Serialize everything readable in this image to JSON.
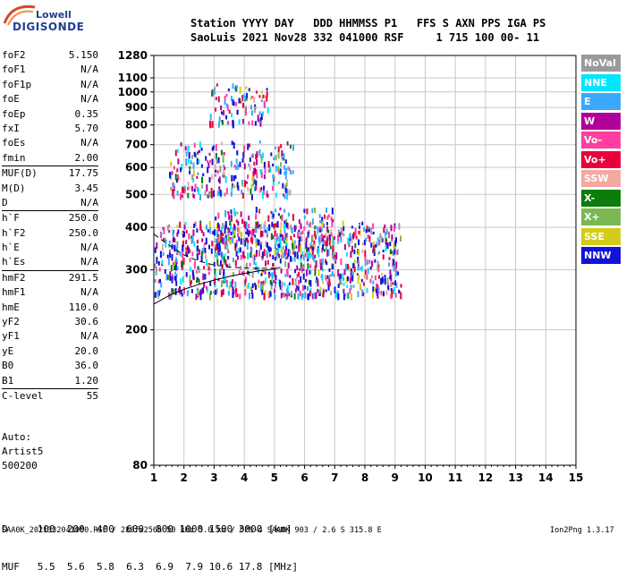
{
  "logo": {
    "line1": "Lowell",
    "line2": "DIGISONDE"
  },
  "header": {
    "line1": "Station YYYY DAY   DDD HHMMSS P1   FFS S AXN PPS IGA PS",
    "line2": "SaoLuis 2021 Nov28 332 041000 RSF     1 715 100 00- 11"
  },
  "params": [
    {
      "name": "foF2",
      "value": "5.150"
    },
    {
      "name": "foF1",
      "value": "N/A"
    },
    {
      "name": "foF1p",
      "value": "N/A"
    },
    {
      "name": "foE",
      "value": "N/A"
    },
    {
      "name": "foEp",
      "value": "0.35"
    },
    {
      "name": "fxI",
      "value": "5.70"
    },
    {
      "name": "foEs",
      "value": "N/A"
    },
    {
      "name": "fmin",
      "value": "2.00"
    },
    {
      "name": "MUF(D)",
      "value": "17.75"
    },
    {
      "name": "M(D)",
      "value": "3.45"
    },
    {
      "name": "D",
      "value": "N/A"
    },
    {
      "name": "h`F",
      "value": "250.0"
    },
    {
      "name": "h`F2",
      "value": "250.0"
    },
    {
      "name": "h`E",
      "value": "N/A"
    },
    {
      "name": "h`Es",
      "value": "N/A"
    },
    {
      "name": "hmF2",
      "value": "291.5"
    },
    {
      "name": "hmF1",
      "value": "N/A"
    },
    {
      "name": "hmE",
      "value": "110.0"
    },
    {
      "name": "yF2",
      "value": "30.6"
    },
    {
      "name": "yF1",
      "value": "N/A"
    },
    {
      "name": "yE",
      "value": "20.0"
    },
    {
      "name": "B0",
      "value": "36.0"
    },
    {
      "name": "B1",
      "value": "1.20"
    },
    {
      "name": "C-level",
      "value": "55"
    }
  ],
  "auto": {
    "label": "Auto:",
    "artist": "Artist5",
    "version": "500200"
  },
  "legend": [
    {
      "label": "NoVal",
      "color": "#9a9a9a"
    },
    {
      "label": "NNE",
      "color": "#00e6ff"
    },
    {
      "label": "E",
      "color": "#3aa8ff"
    },
    {
      "label": "W",
      "color": "#b0009a"
    },
    {
      "label": "Vo-",
      "color": "#ff3fa0"
    },
    {
      "label": "Vo+",
      "color": "#e8003a"
    },
    {
      "label": "SSW",
      "color": "#f4a8a0"
    },
    {
      "label": "X-",
      "color": "#0a7d0a"
    },
    {
      "label": "X+",
      "color": "#7ab854"
    },
    {
      "label": "SSE",
      "color": "#d2cc1a"
    },
    {
      "label": "NNW",
      "color": "#1212d8"
    }
  ],
  "footer": {
    "d_row": "D     100  200  400  600  800 1000 1500 3000 [km]",
    "muf_row": "MUF   5.5  5.6  5.8  6.3  6.9  7.9 10.6 17.8 [MHz]",
    "info": "SAA0K_2021332041000.RSF / 280fx256h 50 kHz 5.0 km / DPS-4 SAA0K 903 / 2.6 S 315.8 E",
    "version": "Ion2Png 1.3.17"
  },
  "chart_data": {
    "type": "scatter",
    "title": "",
    "xlabel": "",
    "ylabel": "",
    "xlim": [
      1,
      15
    ],
    "ylim": [
      80,
      1280
    ],
    "y_scale": "log",
    "x_ticks": [
      1,
      2,
      3,
      4,
      5,
      6,
      7,
      8,
      9,
      10,
      11,
      12,
      13,
      14,
      15
    ],
    "y_ticks": [
      80,
      200,
      300,
      400,
      500,
      600,
      700,
      800,
      900,
      1000,
      1100,
      1280
    ],
    "grid": true,
    "traces": [
      {
        "name": "",
        "style": "solid",
        "x": [
          1.0,
          1.5,
          2.0,
          2.5,
          3.0,
          3.5,
          4.0,
          4.5,
          5.0,
          5.2
        ],
        "y": [
          238,
          252,
          263,
          272,
          280,
          287,
          293,
          298,
          302,
          305
        ]
      },
      {
        "name": "",
        "style": "dashed",
        "x": [
          1.0,
          1.5,
          2.0,
          2.5,
          3.0,
          3.5,
          4.0,
          4.5,
          5.0
        ],
        "y": [
          382,
          355,
          332,
          318,
          310,
          306,
          304,
          303,
          304
        ]
      }
    ],
    "echo_regions": [
      {
        "x_range": [
          1.0,
          9.2
        ],
        "y_range": [
          255,
          420
        ],
        "density": 900
      },
      {
        "x_range": [
          1.5,
          5.6
        ],
        "y_range": [
          500,
          720
        ],
        "density": 260
      },
      {
        "x_range": [
          2.8,
          4.8
        ],
        "y_range": [
          820,
          1060
        ],
        "density": 90
      },
      {
        "x_range": [
          3.0,
          7.0
        ],
        "y_range": [
          330,
          460
        ],
        "density": 240
      }
    ]
  }
}
